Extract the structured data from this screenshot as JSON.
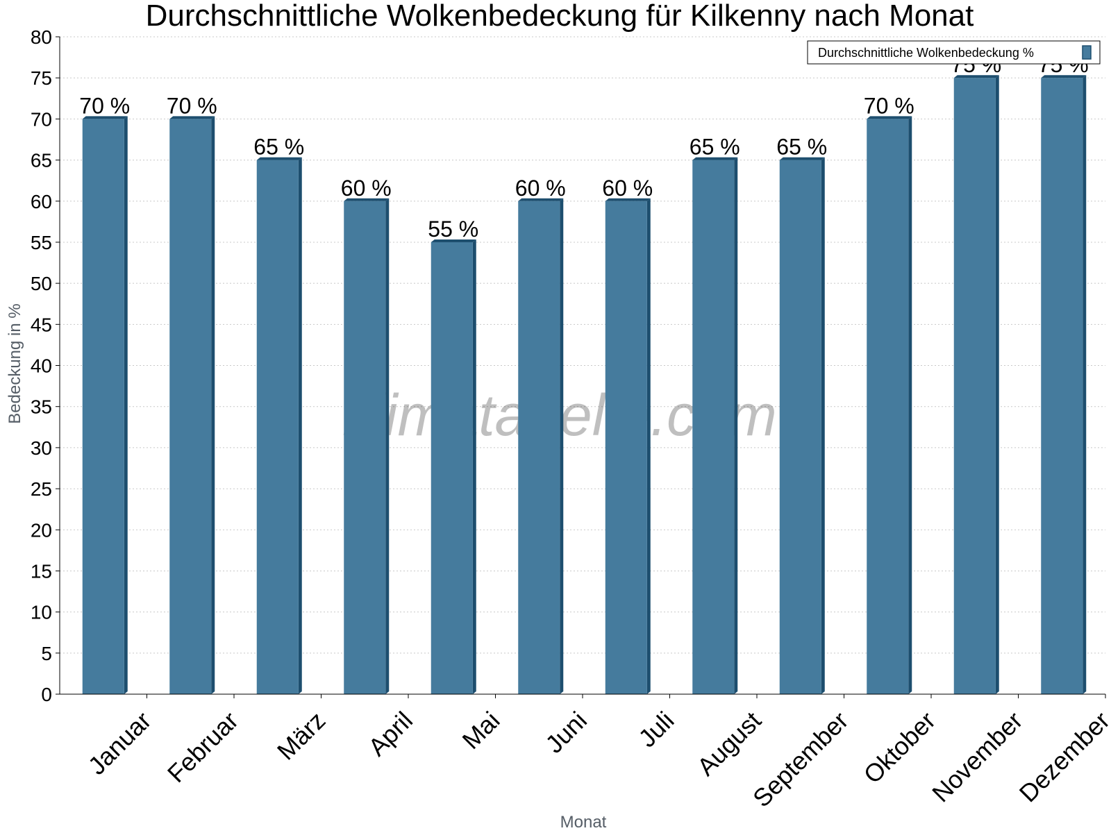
{
  "chart_data": {
    "type": "bar",
    "title": "Durchschnittliche Wolkenbedeckung für Kilkenny nach Monat",
    "xlabel": "Monat",
    "ylabel": "Bedeckung in %",
    "ylim": [
      0,
      80
    ],
    "yticks": [
      0,
      5,
      10,
      15,
      20,
      25,
      30,
      35,
      40,
      45,
      50,
      55,
      60,
      65,
      70,
      75,
      80
    ],
    "grid": true,
    "legend_position": "top-right",
    "categories": [
      "Januar",
      "Februar",
      "März",
      "April",
      "Mai",
      "Juni",
      "Juli",
      "August",
      "September",
      "Oktober",
      "November",
      "Dezember"
    ],
    "series": [
      {
        "name": "Durchschnittliche Wolkenbedeckung %",
        "values": [
          70,
          70,
          65,
          60,
          55,
          60,
          60,
          65,
          65,
          70,
          75,
          75
        ],
        "labels": [
          "70 %",
          "70 %",
          "65 %",
          "60 %",
          "55 %",
          "60 %",
          "60 %",
          "65 %",
          "65 %",
          "70 %",
          "75 %",
          "75 %"
        ],
        "color": "#457b9d",
        "edge_color": "#1d4e6e"
      }
    ],
    "watermark": "klimatabelle.com"
  }
}
